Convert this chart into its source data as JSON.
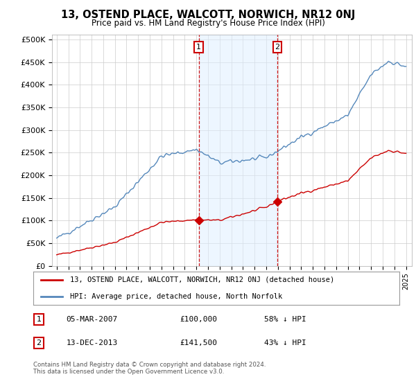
{
  "title": "13, OSTEND PLACE, WALCOTT, NORWICH, NR12 0NJ",
  "subtitle": "Price paid vs. HM Land Registry's House Price Index (HPI)",
  "ylabel_ticks": [
    "£0",
    "£50K",
    "£100K",
    "£150K",
    "£200K",
    "£250K",
    "£300K",
    "£350K",
    "£400K",
    "£450K",
    "£500K"
  ],
  "ytick_vals": [
    0,
    50000,
    100000,
    150000,
    200000,
    250000,
    300000,
    350000,
    400000,
    450000,
    500000
  ],
  "ylim": [
    0,
    510000
  ],
  "legend_label_red": "13, OSTEND PLACE, WALCOTT, NORWICH, NR12 0NJ (detached house)",
  "legend_label_blue": "HPI: Average price, detached house, North Norfolk",
  "marker1_year": 2007.2,
  "marker1_price": 100000,
  "marker1_date": "05-MAR-2007",
  "marker1_label": "58% ↓ HPI",
  "marker2_year": 2013.95,
  "marker2_price": 141500,
  "marker2_date": "13-DEC-2013",
  "marker2_label": "43% ↓ HPI",
  "footnote": "Contains HM Land Registry data © Crown copyright and database right 2024.\nThis data is licensed under the Open Government Licence v3.0.",
  "plot_bg_color": "#ffffff",
  "red_color": "#cc0000",
  "blue_color": "#5588bb",
  "fill_color": "#ddeeff"
}
